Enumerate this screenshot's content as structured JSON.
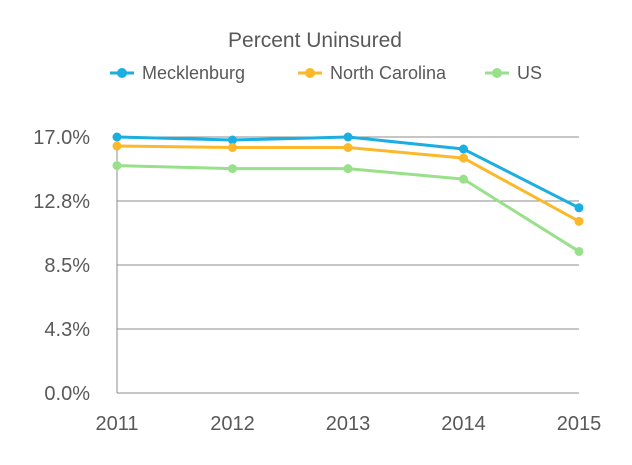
{
  "chart_data": {
    "type": "line",
    "title": "Percent Uninsured",
    "xlabel": "",
    "ylabel": "",
    "x": [
      "2011",
      "2012",
      "2013",
      "2014",
      "2015"
    ],
    "y_ticks": [
      "0.0%",
      "4.3%",
      "8.5%",
      "12.8%",
      "17.0%"
    ],
    "ylim": [
      0,
      17.0
    ],
    "grid": true,
    "legend_position": "top",
    "series": [
      {
        "name": "Mecklenburg",
        "color": "#1BAEE0",
        "values": [
          17.0,
          16.8,
          17.0,
          16.2,
          12.3
        ]
      },
      {
        "name": "North Carolina",
        "color": "#FBB929",
        "values": [
          16.4,
          16.3,
          16.3,
          15.6,
          11.4
        ]
      },
      {
        "name": "US",
        "color": "#98E08A",
        "values": [
          15.1,
          14.9,
          14.9,
          14.2,
          9.4
        ]
      }
    ]
  }
}
